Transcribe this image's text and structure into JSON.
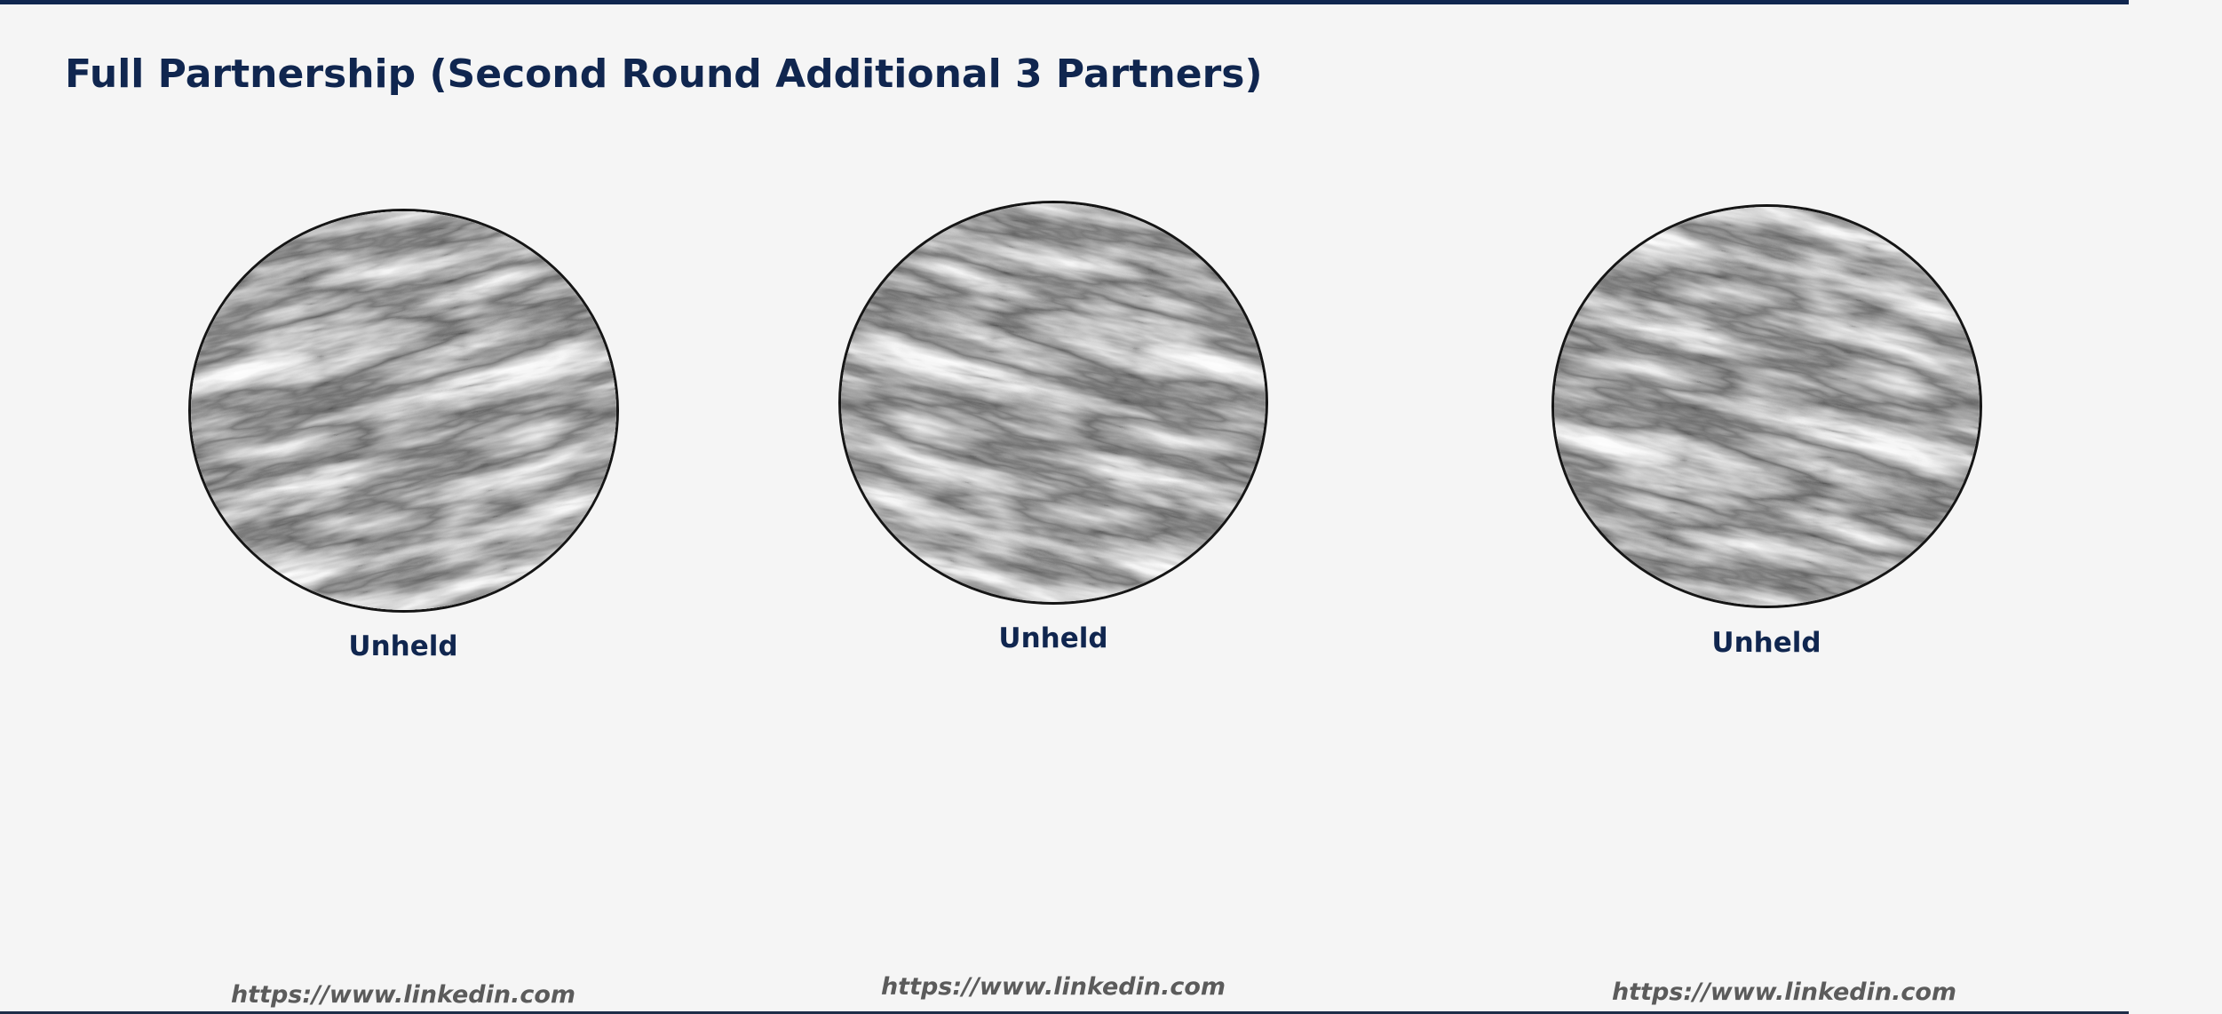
{
  "slide": {
    "title": "Full Partnership (Second Round Additional 3 Partners)"
  },
  "partners": [
    {
      "status": "Unheld",
      "link": "https://www.linkedin.com"
    },
    {
      "status": "Unheld",
      "link": "https://www.linkedin.com"
    },
    {
      "status": "Unheld",
      "link": "https://www.linkedin.com"
    }
  ],
  "colors": {
    "accent": "#10264f",
    "link": "#5b5b5b",
    "background": "#f5f5f5"
  },
  "icons": {
    "partner_placeholder": "marble-texture-icon"
  }
}
